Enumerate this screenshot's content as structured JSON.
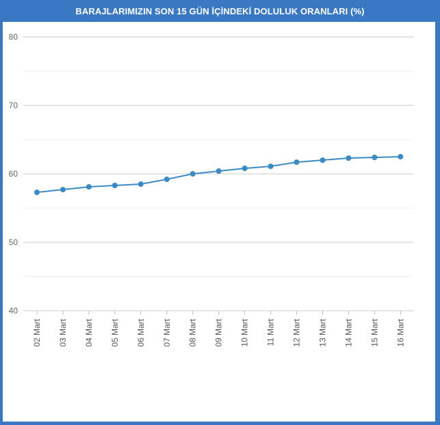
{
  "title": "BARAJLARIMIZIN SON 15 GÜN İÇİNDEKİ DOLULUK ORANLARI (%)",
  "colors": {
    "background": "#3a78c2",
    "panel": "#ffffff",
    "line": "#3b8ac4",
    "grid": "#d8d8d8"
  },
  "chart_data": {
    "type": "line",
    "title": "BARAJLARIMIZIN SON 15 GÜN İÇİNDEKİ DOLULUK ORANLARI (%)",
    "xlabel": "",
    "ylabel": "",
    "categories": [
      "02 Mart",
      "03 Mart",
      "04 Mart",
      "05 Mart",
      "06 Mart",
      "07 Mart",
      "08 Mart",
      "09 Mart",
      "10 Mart",
      "11 Mart",
      "12 Mart",
      "13 Mart",
      "14 Mart",
      "15 Mart",
      "16 Mart"
    ],
    "series": [
      {
        "values": [
          57.3,
          57.7,
          58.1,
          58.3,
          58.5,
          59.2,
          60.0,
          60.4,
          60.8,
          61.1,
          61.7,
          62.0,
          62.3,
          62.4,
          62.5
        ]
      }
    ],
    "ylim": [
      40,
      80
    ],
    "yticks": [
      "40",
      "50",
      "60",
      "70",
      "80"
    ],
    "grid": true,
    "minor_grid": true,
    "legend": "none"
  }
}
